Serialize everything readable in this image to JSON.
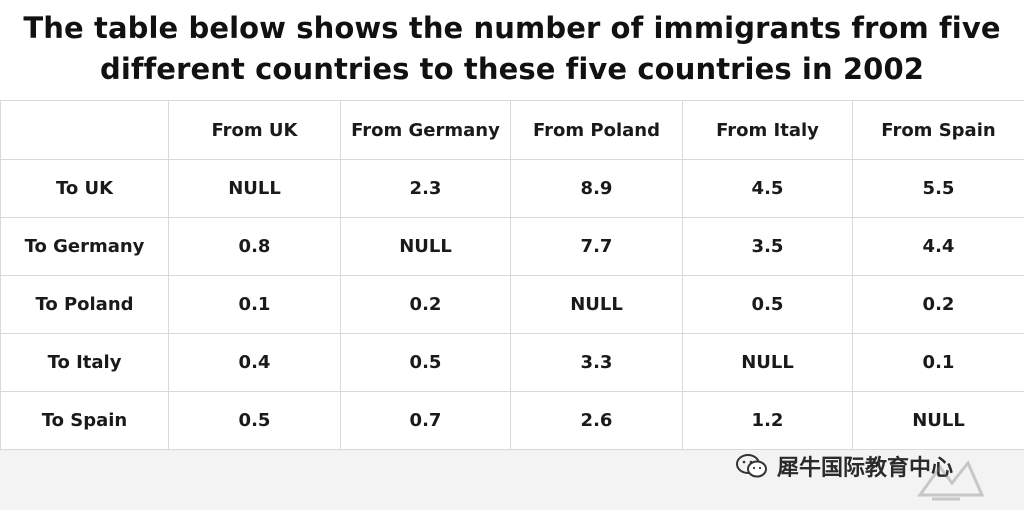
{
  "title_lines": [
    "The table below shows the number of immigrants from five",
    "different countries to these five countries in 2002"
  ],
  "chart_data": {
    "type": "table",
    "title": "The table below shows the number of immigrants from five different countries to these five countries in 2002",
    "columns": [
      "",
      "From UK",
      "From Germany",
      "From Poland",
      "From Italy",
      "From Spain"
    ],
    "rows": [
      {
        "label": "To UK",
        "values": [
          "NULL",
          "2.3",
          "8.9",
          "4.5",
          "5.5"
        ]
      },
      {
        "label": "To Germany",
        "values": [
          "0.8",
          "NULL",
          "7.7",
          "3.5",
          "4.4"
        ]
      },
      {
        "label": "To Poland",
        "values": [
          "0.1",
          "0.2",
          "NULL",
          "0.5",
          "0.2"
        ]
      },
      {
        "label": "To Italy",
        "values": [
          "0.4",
          "0.5",
          "3.3",
          "NULL",
          "0.1"
        ]
      },
      {
        "label": "To Spain",
        "values": [
          "0.5",
          "0.7",
          "2.6",
          "1.2",
          "NULL"
        ]
      }
    ]
  },
  "watermark": {
    "text": "犀牛国际教育中心",
    "icon": "wechat-icon",
    "logo": "rhino-logo-icon"
  },
  "colors": {
    "border": "#d9d9d9",
    "text": "#1a1a1a",
    "background": "#ffffff"
  }
}
